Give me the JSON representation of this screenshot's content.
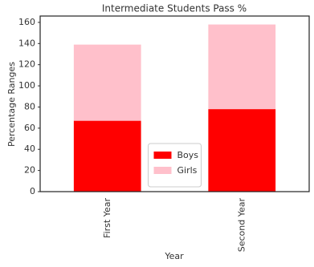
{
  "chart_data": {
    "type": "stacked_bar",
    "title": "Intermediate Students Pass %",
    "x_label": "Year",
    "y_label": "Percentage Ranges",
    "categories": [
      "First Year",
      "Second Year"
    ],
    "series": [
      {
        "name": "Boys",
        "color": "#ff0000",
        "values": [
          67,
          78
        ]
      },
      {
        "name": "Girls",
        "color": "#ffc0cb",
        "values": [
          72,
          80
        ]
      }
    ],
    "ylim": [
      0,
      166
    ],
    "yticks": [
      0,
      20,
      40,
      60,
      80,
      100,
      120,
      140,
      160
    ],
    "legend": "lower center"
  }
}
